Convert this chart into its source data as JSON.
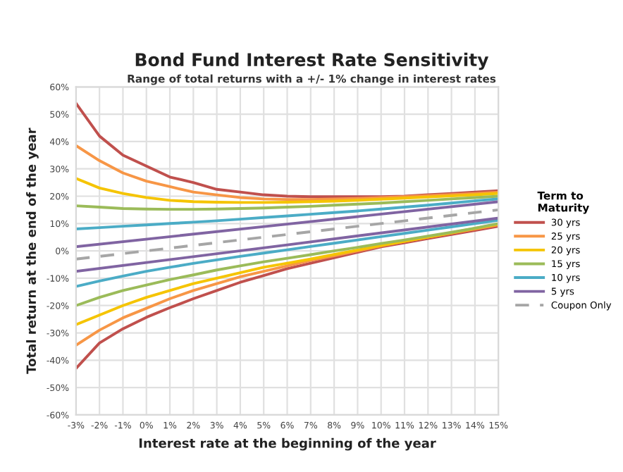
{
  "chart_data": {
    "type": "line",
    "title": "Bond Fund Interest Rate Sensitivity",
    "subtitle": "Range of total returns with a +/- 1% change in interest rates",
    "xlabel": "Interest rate at the beginning of the year",
    "ylabel": "Total return at the end of the year",
    "legend_title": "Term to\nMaturity",
    "legend": "right",
    "grid": true,
    "line_style": "solid",
    "marker": "none",
    "x": [
      -3,
      -2,
      -1,
      0,
      1,
      2,
      3,
      4,
      5,
      6,
      7,
      8,
      9,
      10,
      11,
      12,
      13,
      14,
      15
    ],
    "xlim": [
      -3,
      15
    ],
    "xticks": [
      {
        "value": -3,
        "label": "-3%"
      },
      {
        "value": -2,
        "label": "-2%"
      },
      {
        "value": -1,
        "label": "-1%"
      },
      {
        "value": 0,
        "label": "0%"
      },
      {
        "value": 1,
        "label": "1%"
      },
      {
        "value": 2,
        "label": "2%"
      },
      {
        "value": 3,
        "label": "3%"
      },
      {
        "value": 4,
        "label": "4%"
      },
      {
        "value": 5,
        "label": "5%"
      },
      {
        "value": 6,
        "label": "6%"
      },
      {
        "value": 7,
        "label": "7%"
      },
      {
        "value": 8,
        "label": "8%"
      },
      {
        "value": 9,
        "label": "9%"
      },
      {
        "value": 10,
        "label": "10%"
      },
      {
        "value": 11,
        "label": "11%"
      },
      {
        "value": 12,
        "label": "12%"
      },
      {
        "value": 13,
        "label": "13%"
      },
      {
        "value": 14,
        "label": "14%"
      },
      {
        "value": 15,
        "label": "15%"
      }
    ],
    "ylim": [
      -60,
      60
    ],
    "yticks": [
      {
        "value": -60,
        "label": "-60%"
      },
      {
        "value": -50,
        "label": "-50%"
      },
      {
        "value": -40,
        "label": "-40%"
      },
      {
        "value": -30,
        "label": "-30%"
      },
      {
        "value": -20,
        "label": "-20%"
      },
      {
        "value": -10,
        "label": "-10%"
      },
      {
        "value": 0,
        "label": "0%"
      },
      {
        "value": 10,
        "label": "10%"
      },
      {
        "value": 20,
        "label": "20%"
      },
      {
        "value": 30,
        "label": "30%"
      },
      {
        "value": 40,
        "label": "40%"
      },
      {
        "value": 50,
        "label": "50%"
      },
      {
        "value": 60,
        "label": "60%"
      }
    ],
    "series": [
      {
        "name": "30 yrs",
        "color": "#c0504d",
        "values": [
          54,
          42,
          35,
          31,
          27,
          25,
          22.5,
          21.5,
          20.5,
          20,
          19.8,
          19.8,
          19.8,
          19.8,
          20,
          20.5,
          21,
          21.5,
          22
        ]
      },
      {
        "color": "#c0504d",
        "values": [
          -43,
          -33.7,
          -28.5,
          -24.3,
          -20.8,
          -17.5,
          -14.5,
          -11.5,
          -9,
          -6.5,
          -4.5,
          -2.5,
          -0.5,
          1.5,
          3,
          4.5,
          6,
          7.5,
          9
        ]
      },
      {
        "name": "25 yrs",
        "color": "#f79646",
        "values": [
          38.5,
          33,
          28.5,
          25.5,
          23.5,
          21.5,
          20.5,
          19.5,
          19,
          18.8,
          18.8,
          19,
          19.2,
          19.5,
          19.8,
          20.2,
          20.6,
          21,
          21.5
        ]
      },
      {
        "color": "#f79646",
        "values": [
          -34.5,
          -29,
          -24.5,
          -21,
          -17.5,
          -14.5,
          -12,
          -9.5,
          -7.5,
          -5.5,
          -3.5,
          -1.8,
          0,
          1.8,
          3.5,
          5,
          6.5,
          8,
          9.5
        ]
      },
      {
        "name": "20 yrs",
        "color": "#f5c400",
        "values": [
          26.5,
          23,
          21,
          19.5,
          18.5,
          18,
          17.8,
          17.7,
          17.7,
          17.8,
          18,
          18.2,
          18.5,
          18.9,
          19.3,
          19.7,
          20.1,
          20.5,
          21
        ]
      },
      {
        "color": "#f5c400",
        "values": [
          -27,
          -23.5,
          -20,
          -17,
          -14.5,
          -12,
          -10,
          -8,
          -6,
          -4.5,
          -3,
          -1.3,
          0.3,
          2,
          3.5,
          5,
          6.6,
          8.2,
          9.8
        ]
      },
      {
        "name": "15 yrs",
        "color": "#9bbb59",
        "values": [
          16.5,
          16,
          15.5,
          15.3,
          15.2,
          15.2,
          15.3,
          15.5,
          15.7,
          16,
          16.3,
          16.7,
          17.1,
          17.5,
          18,
          18.5,
          19,
          19.5,
          20
        ]
      },
      {
        "color": "#9bbb59",
        "values": [
          -20,
          -17,
          -14.5,
          -12.5,
          -10.5,
          -8.8,
          -7,
          -5.5,
          -4,
          -2.7,
          -1.4,
          0,
          1.3,
          2.7,
          4,
          5.4,
          6.8,
          8.3,
          10
        ]
      },
      {
        "name": "10 yrs",
        "color": "#4bacc6",
        "values": [
          8,
          8.5,
          9,
          9.5,
          10,
          10.5,
          11,
          11.6,
          12.2,
          12.8,
          13.4,
          14,
          14.6,
          15.3,
          16,
          16.7,
          17.5,
          18.3,
          19
        ]
      },
      {
        "color": "#4bacc6",
        "values": [
          -13,
          -11,
          -9.2,
          -7.5,
          -6,
          -4.6,
          -3.3,
          -2,
          -0.8,
          0.4,
          1.6,
          2.8,
          4,
          5.2,
          6.4,
          7.6,
          8.8,
          10,
          11.2
        ]
      },
      {
        "name": "5 yrs",
        "color": "#8064a2",
        "x": [
          -3,
          6,
          15
        ],
        "values": [
          1.5,
          9.8,
          18
        ]
      },
      {
        "color": "#8064a2",
        "x": [
          -3,
          6,
          15
        ],
        "values": [
          -7.5,
          2.2,
          12
        ]
      },
      {
        "name": "Coupon Only",
        "color": "#a6a6a6",
        "line_style": "dashed",
        "x": [
          -3,
          6,
          15
        ],
        "values": [
          -3,
          6,
          15
        ]
      }
    ]
  }
}
